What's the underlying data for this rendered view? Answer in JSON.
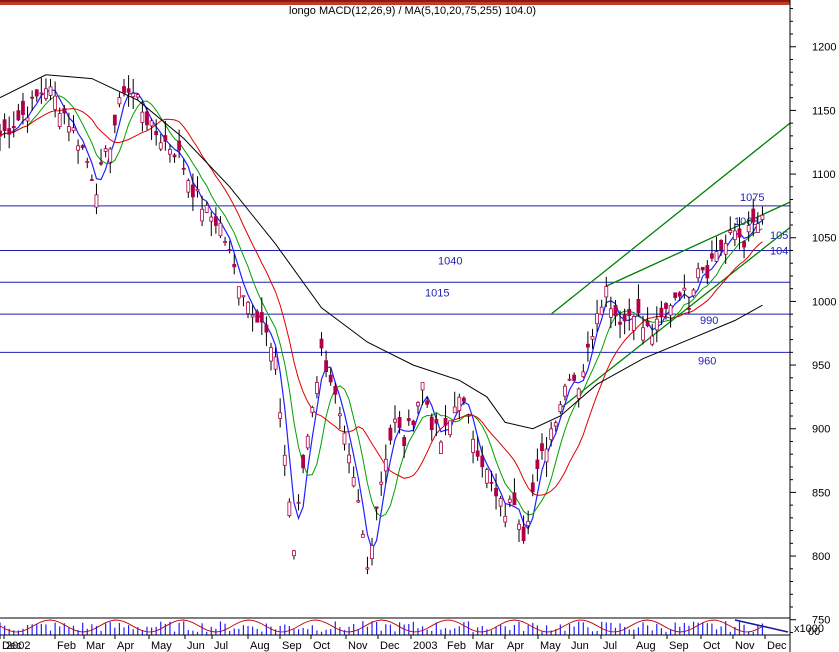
{
  "header": {
    "title": "longo MACD(12,26,9) / MA(5,10,20,75,255) 104.0)"
  },
  "colors": {
    "background": "#ffffff",
    "price": "#b0004a",
    "ma_short": "#2020ff",
    "ma_green": "#00a000",
    "ma_red": "#e00000",
    "ma_long": "#000000",
    "levels": "#1f1fb4",
    "channel": "#008000"
  },
  "chart_data": {
    "type": "candlestick",
    "title": "longo MACD(12,26,9) / MA(5,10,20,75,255) 104.0)",
    "ylim": [
      738,
      1232
    ],
    "y_ticks": [
      750,
      800,
      850,
      900,
      950,
      1000,
      1050,
      1100,
      1150,
      1200
    ],
    "x_ticks": [
      "Dec",
      "2002",
      "Feb",
      "Mar",
      "Apr",
      "May",
      "Jun",
      "Jul",
      "Aug",
      "Sep",
      "Oct",
      "Nov",
      "Dec",
      "2003",
      "Feb",
      "Mar",
      "Apr",
      "May",
      "Jun",
      "Jul",
      "Aug",
      "Sep",
      "Oct",
      "Nov",
      "Dec"
    ],
    "price_path": [
      [
        0,
        1130
      ],
      [
        6,
        1150
      ],
      [
        10,
        1170
      ],
      [
        14,
        1148
      ],
      [
        18,
        1120
      ],
      [
        21,
        1090
      ],
      [
        24,
        1125
      ],
      [
        27,
        1168
      ],
      [
        30,
        1160
      ],
      [
        33,
        1135
      ],
      [
        36,
        1125
      ],
      [
        39,
        1115
      ],
      [
        42,
        1088
      ],
      [
        45,
        1070
      ],
      [
        48,
        1060
      ],
      [
        51,
        1025
      ],
      [
        54,
        1000
      ],
      [
        57,
        985
      ],
      [
        60,
        950
      ],
      [
        62,
        880
      ],
      [
        64,
        805
      ],
      [
        66,
        870
      ],
      [
        68,
        920
      ],
      [
        70,
        960
      ],
      [
        72,
        940
      ],
      [
        75,
        890
      ],
      [
        78,
        840
      ],
      [
        80,
        790
      ],
      [
        82,
        840
      ],
      [
        84,
        880
      ],
      [
        86,
        905
      ],
      [
        88,
        890
      ],
      [
        90,
        910
      ],
      [
        92,
        935
      ],
      [
        94,
        905
      ],
      [
        96,
        890
      ],
      [
        98,
        905
      ],
      [
        100,
        930
      ],
      [
        102,
        905
      ],
      [
        104,
        885
      ],
      [
        106,
        865
      ],
      [
        108,
        845
      ],
      [
        110,
        835
      ],
      [
        112,
        845
      ],
      [
        114,
        818
      ],
      [
        116,
        850
      ],
      [
        118,
        878
      ],
      [
        120,
        900
      ],
      [
        122,
        922
      ],
      [
        124,
        945
      ],
      [
        126,
        935
      ],
      [
        128,
        960
      ],
      [
        130,
        995
      ],
      [
        132,
        1010
      ],
      [
        134,
        990
      ],
      [
        136,
        985
      ],
      [
        138,
        995
      ],
      [
        140,
        980
      ],
      [
        142,
        975
      ],
      [
        144,
        985
      ],
      [
        146,
        1000
      ],
      [
        148,
        1010
      ],
      [
        150,
        1000
      ],
      [
        152,
        1030
      ],
      [
        154,
        1025
      ],
      [
        156,
        1040
      ],
      [
        158,
        1045
      ],
      [
        160,
        1055
      ],
      [
        162,
        1048
      ],
      [
        164,
        1060
      ],
      [
        166,
        1062
      ]
    ],
    "levels": [
      {
        "value": 1075,
        "label": "1075"
      },
      {
        "value": 1040,
        "label": "1040"
      },
      {
        "value": 1015,
        "label": "1015"
      },
      {
        "value": 990,
        "label": "990"
      },
      {
        "value": 960,
        "label": "960"
      }
    ],
    "extra_labels": [
      "1063",
      "105",
      "104"
    ],
    "channel_upper": [
      [
        120,
        990
      ],
      [
        172,
        1140
      ]
    ],
    "channel_lower": [
      [
        122,
        916
      ],
      [
        172,
        1058
      ]
    ],
    "channel_mid": [
      [
        132,
        1012
      ],
      [
        172,
        1078
      ]
    ],
    "ma_long": [
      [
        0,
        1160
      ],
      [
        10,
        1178
      ],
      [
        20,
        1175
      ],
      [
        30,
        1158
      ],
      [
        40,
        1128
      ],
      [
        50,
        1090
      ],
      [
        60,
        1045
      ],
      [
        70,
        995
      ],
      [
        80,
        968
      ],
      [
        90,
        950
      ],
      [
        100,
        938
      ],
      [
        106,
        925
      ],
      [
        110,
        905
      ],
      [
        116,
        900
      ],
      [
        122,
        910
      ],
      [
        130,
        935
      ],
      [
        140,
        955
      ],
      [
        150,
        970
      ],
      [
        160,
        985
      ],
      [
        166,
        997
      ]
    ],
    "volume_axis_label": "x1000",
    "volume_axis_ticks": [
      "00"
    ]
  }
}
